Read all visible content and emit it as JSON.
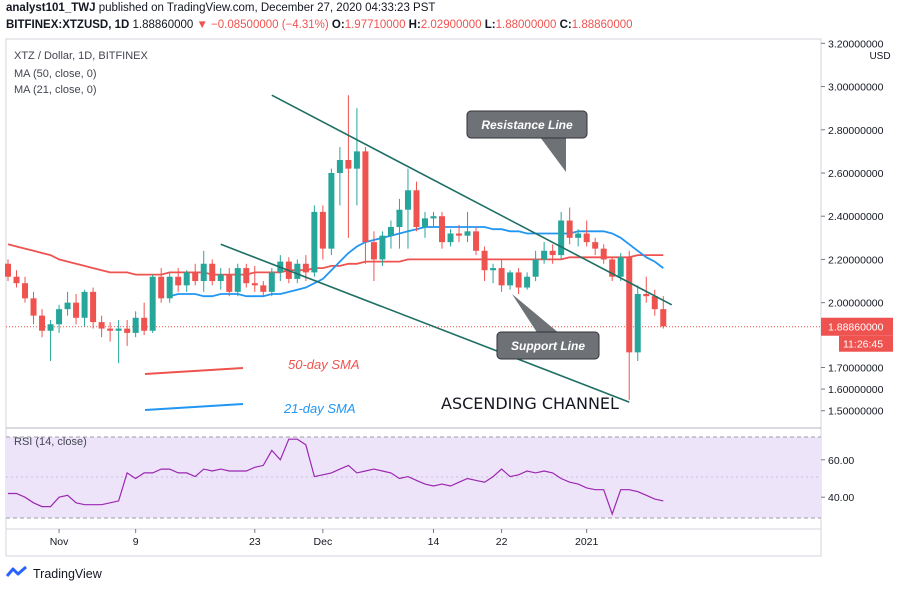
{
  "header": {
    "author": "analyst101_TWJ",
    "published": "published on TradingView.com, December 27, 2020 04:33:23 PST",
    "symbol": "BITFINEX:XTZUSD, 1D",
    "last": "1.88860000",
    "change": "▼ −0.08500000 (−4.31%)",
    "o_label": "O:",
    "o_value": "1.97710000",
    "h_label": "H:",
    "h_value": "2.02900000",
    "l_label": "L:",
    "l_value": "1.88000000",
    "c_label": "C:",
    "c_value": "1.88860000"
  },
  "legend": {
    "title": "XTZ / Dollar, 1D, BITFINEX",
    "ma50": "MA (50, close, 0)",
    "ma21": "MA (21, close, 0)",
    "rsi": "RSI (14, close)"
  },
  "footer": {
    "brand": "TradingView"
  },
  "colors": {
    "up": "#26a69a",
    "down": "#ef5350",
    "ma50": "#ef5350",
    "ma21": "#2196f3",
    "channel": "#1e6f63",
    "rsi_line": "#9c27b0",
    "rsi_band": "#ede4fa",
    "axis": "#787b86"
  },
  "chart_data": [
    {
      "type": "candlestick",
      "title": "XTZ / Dollar, 1D, BITFINEX",
      "currency": "USD",
      "ylim": [
        1.42,
        3.22
      ],
      "y_ticks": [
        "3.20000000",
        "3.00000000",
        "2.80000000",
        "2.60000000",
        "2.40000000",
        "2.20000000",
        "2.00000000",
        "1.70000000",
        "1.60000000",
        "1.50000000"
      ],
      "last_price_label": "1.88860000",
      "countdown_label": "11:26:45",
      "candles": [
        [
          2.18,
          2.2,
          2.1,
          2.12
        ],
        [
          2.12,
          2.15,
          2.07,
          2.09
        ],
        [
          2.09,
          2.12,
          2.0,
          2.02
        ],
        [
          2.02,
          2.05,
          1.9,
          1.94
        ],
        [
          1.94,
          1.97,
          1.84,
          1.87
        ],
        [
          1.87,
          1.92,
          1.73,
          1.9
        ],
        [
          1.9,
          1.99,
          1.86,
          1.97
        ],
        [
          1.97,
          2.05,
          1.94,
          2.0
        ],
        [
          2.0,
          2.04,
          1.9,
          1.93
        ],
        [
          1.93,
          2.06,
          1.89,
          2.05
        ],
        [
          2.05,
          2.07,
          1.88,
          1.91
        ],
        [
          1.91,
          1.94,
          1.84,
          1.88
        ],
        [
          1.88,
          1.91,
          1.82,
          1.87
        ],
        [
          1.87,
          1.92,
          1.72,
          1.88
        ],
        [
          1.88,
          1.92,
          1.8,
          1.86
        ],
        [
          1.86,
          1.96,
          1.84,
          1.93
        ],
        [
          1.93,
          2.0,
          1.85,
          1.87
        ],
        [
          1.87,
          2.13,
          1.86,
          2.12
        ],
        [
          2.12,
          2.16,
          2.0,
          2.02
        ],
        [
          2.02,
          2.14,
          2.0,
          2.12
        ],
        [
          2.12,
          2.16,
          2.05,
          2.08
        ],
        [
          2.08,
          2.15,
          2.05,
          2.14
        ],
        [
          2.14,
          2.18,
          2.08,
          2.1
        ],
        [
          2.1,
          2.24,
          2.05,
          2.18
        ],
        [
          2.18,
          2.2,
          2.08,
          2.1
        ],
        [
          2.1,
          2.16,
          2.06,
          2.13
        ],
        [
          2.13,
          2.16,
          2.03,
          2.05
        ],
        [
          2.05,
          2.18,
          2.03,
          2.16
        ],
        [
          2.16,
          2.18,
          2.07,
          2.09
        ],
        [
          2.09,
          2.17,
          2.05,
          2.08
        ],
        [
          2.08,
          2.1,
          2.03,
          2.05
        ],
        [
          2.05,
          2.16,
          2.03,
          2.14
        ],
        [
          2.14,
          2.22,
          2.1,
          2.19
        ],
        [
          2.19,
          2.21,
          2.09,
          2.11
        ],
        [
          2.11,
          2.2,
          2.09,
          2.18
        ],
        [
          2.18,
          2.22,
          2.1,
          2.14
        ],
        [
          2.14,
          2.45,
          2.12,
          2.42
        ],
        [
          2.42,
          2.45,
          2.2,
          2.25
        ],
        [
          2.25,
          2.62,
          2.22,
          2.6
        ],
        [
          2.6,
          2.72,
          2.45,
          2.66
        ],
        [
          2.66,
          2.96,
          2.3,
          2.62
        ],
        [
          2.62,
          2.9,
          2.45,
          2.7
        ],
        [
          2.7,
          2.72,
          2.18,
          2.28
        ],
        [
          2.28,
          2.33,
          2.1,
          2.2
        ],
        [
          2.2,
          2.33,
          2.17,
          2.31
        ],
        [
          2.31,
          2.38,
          2.25,
          2.35
        ],
        [
          2.35,
          2.48,
          2.25,
          2.43
        ],
        [
          2.43,
          2.62,
          2.25,
          2.52
        ],
        [
          2.52,
          2.56,
          2.33,
          2.35
        ],
        [
          2.35,
          2.42,
          2.3,
          2.39
        ],
        [
          2.39,
          2.42,
          2.35,
          2.4
        ],
        [
          2.4,
          2.42,
          2.25,
          2.28
        ],
        [
          2.28,
          2.34,
          2.26,
          2.32
        ],
        [
          2.32,
          2.36,
          2.28,
          2.31
        ],
        [
          2.31,
          2.42,
          2.28,
          2.33
        ],
        [
          2.33,
          2.35,
          2.22,
          2.24
        ],
        [
          2.24,
          2.26,
          2.1,
          2.15
        ],
        [
          2.15,
          2.18,
          2.09,
          2.16
        ],
        [
          2.16,
          2.2,
          2.05,
          2.08
        ],
        [
          2.08,
          2.15,
          2.06,
          2.14
        ],
        [
          2.14,
          2.16,
          2.04,
          2.07
        ],
        [
          2.07,
          2.14,
          2.06,
          2.12
        ],
        [
          2.12,
          2.24,
          2.1,
          2.2
        ],
        [
          2.2,
          2.28,
          2.18,
          2.24
        ],
        [
          2.24,
          2.27,
          2.18,
          2.22
        ],
        [
          2.22,
          2.42,
          2.2,
          2.38
        ],
        [
          2.38,
          2.44,
          2.27,
          2.3
        ],
        [
          2.3,
          2.34,
          2.26,
          2.32
        ],
        [
          2.32,
          2.38,
          2.26,
          2.28
        ],
        [
          2.28,
          2.3,
          2.22,
          2.25
        ],
        [
          2.25,
          2.27,
          2.18,
          2.2
        ],
        [
          2.2,
          2.21,
          2.1,
          2.12
        ],
        [
          2.12,
          2.23,
          2.1,
          2.21
        ],
        [
          2.21,
          2.24,
          1.55,
          1.77
        ],
        [
          1.77,
          2.08,
          1.73,
          2.04
        ],
        [
          2.04,
          2.12,
          2.0,
          2.03
        ],
        [
          2.03,
          2.06,
          1.94,
          1.97
        ],
        [
          1.97,
          2.03,
          1.88,
          1.89
        ]
      ],
      "series": [
        {
          "name": "MA (50, close, 0)",
          "values": [
            2.27,
            2.26,
            2.25,
            2.24,
            2.23,
            2.22,
            2.2,
            2.19,
            2.18,
            2.17,
            2.16,
            2.15,
            2.14,
            2.14,
            2.14,
            2.13,
            2.13,
            2.13,
            2.13,
            2.14,
            2.14,
            2.14,
            2.14,
            2.14,
            2.13,
            2.13,
            2.13,
            2.13,
            2.13,
            2.14,
            2.14,
            2.14,
            2.14,
            2.15,
            2.15,
            2.15,
            2.16,
            2.16,
            2.17,
            2.17,
            2.18,
            2.18,
            2.19,
            2.19,
            2.19,
            2.19,
            2.19,
            2.2,
            2.2,
            2.2,
            2.2,
            2.2,
            2.2,
            2.2,
            2.2,
            2.2,
            2.2,
            2.2,
            2.2,
            2.2,
            2.2,
            2.2,
            2.2,
            2.2,
            2.2,
            2.2,
            2.21,
            2.21,
            2.21,
            2.21,
            2.21,
            2.21,
            2.21,
            2.21,
            2.22,
            2.22,
            2.22,
            2.22
          ]
        },
        {
          "name": "MA (21, close, 0)",
          "values": [
            null,
            null,
            null,
            null,
            null,
            null,
            null,
            null,
            null,
            null,
            null,
            null,
            null,
            null,
            null,
            null,
            null,
            null,
            null,
            2.03,
            2.04,
            2.04,
            2.04,
            2.03,
            2.03,
            2.04,
            2.04,
            2.04,
            2.03,
            2.03,
            2.03,
            2.04,
            2.04,
            2.05,
            2.06,
            2.07,
            2.09,
            2.11,
            2.15,
            2.19,
            2.23,
            2.26,
            2.28,
            2.29,
            2.3,
            2.31,
            2.32,
            2.33,
            2.34,
            2.35,
            2.35,
            2.35,
            2.35,
            2.35,
            2.35,
            2.35,
            2.35,
            2.34,
            2.34,
            2.33,
            2.33,
            2.32,
            2.32,
            2.32,
            2.32,
            2.32,
            2.32,
            2.33,
            2.33,
            2.33,
            2.33,
            2.32,
            2.3,
            2.27,
            2.24,
            2.21,
            2.19,
            2.16
          ]
        }
      ],
      "x_tick_labels": [
        {
          "index": 6,
          "label": "Nov"
        },
        {
          "index": 15,
          "label": "9"
        },
        {
          "index": 29,
          "label": "23"
        },
        {
          "index": 37,
          "label": "Dec"
        },
        {
          "index": 50,
          "label": "14"
        },
        {
          "index": 58,
          "label": "22"
        },
        {
          "index": 68,
          "label": "2021"
        }
      ],
      "annotations": [
        {
          "label": "Resistance Line",
          "kind": "callout"
        },
        {
          "label": "Support Line",
          "kind": "callout"
        },
        {
          "label": "50-day SMA",
          "kind": "legend-line"
        },
        {
          "label": "21-day SMA",
          "kind": "legend-line"
        },
        {
          "label": "ASCENDING CHANNEL",
          "kind": "text"
        }
      ],
      "channel": {
        "resistance": [
          [
            31,
            2.96
          ],
          [
            78,
            1.99
          ]
        ],
        "support": [
          [
            25,
            2.27
          ],
          [
            73,
            1.54
          ]
        ]
      }
    },
    {
      "type": "line",
      "title": "RSI (14, close)",
      "ylim": [
        23,
        77
      ],
      "y_ticks": [
        "60.00",
        "40.00"
      ],
      "band": [
        30,
        70
      ],
      "series": [
        {
          "name": "RSI (14, close)",
          "values": [
            42,
            42,
            40,
            37,
            35,
            35,
            40,
            41,
            37,
            36,
            36,
            36,
            37,
            38,
            53,
            50,
            53,
            53,
            55,
            55,
            53,
            53,
            51,
            55,
            54,
            55,
            54,
            54,
            54,
            56,
            57,
            65,
            60,
            71,
            71,
            68,
            51,
            52,
            53,
            55,
            57,
            53,
            54,
            55,
            54,
            53,
            50,
            51,
            49,
            47,
            46,
            47,
            46,
            48,
            50,
            49,
            48,
            51,
            55,
            51,
            52,
            54,
            53,
            54,
            53,
            50,
            48,
            47,
            45,
            44,
            44,
            31,
            44,
            44,
            43,
            41,
            39,
            38
          ]
        }
      ]
    }
  ]
}
